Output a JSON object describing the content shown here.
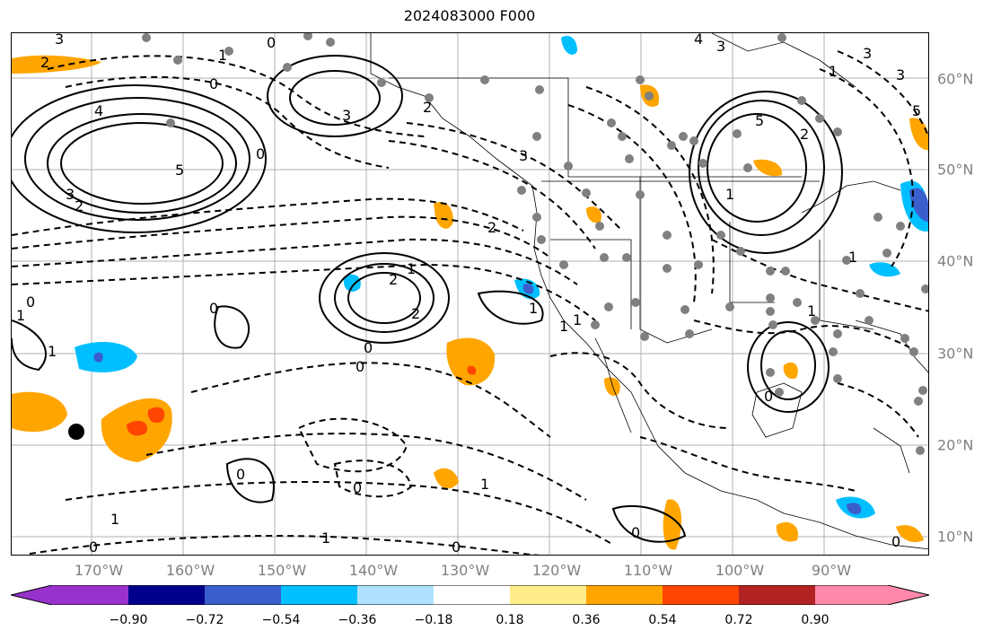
{
  "title": "2024083000 F000",
  "lat_labels": [
    "60°N",
    "50°N",
    "40°N",
    "30°N",
    "20°N",
    "10°N"
  ],
  "lon_labels": [
    "170°W",
    "160°W",
    "150°W",
    "140°W",
    "130°W",
    "120°W",
    "110°W",
    "100°W",
    "90°W"
  ],
  "colorbar": {
    "tick_labels": [
      "−0.90",
      "−0.72",
      "−0.54",
      "−0.36",
      "−0.18",
      "0.18",
      "0.36",
      "0.54",
      "0.72",
      "0.90"
    ],
    "colors": [
      "#9932CC",
      "#00008B",
      "#3A5FCD",
      "#00BFFF",
      "#B0E2FF",
      "#FFFFFF",
      "#FFEC8B",
      "#FFA500",
      "#FF4500",
      "#B22222",
      "#FF88AA"
    ]
  },
  "contour_labels": [
    {
      "text": "3"
    },
    {
      "text": "2"
    },
    {
      "text": "1"
    },
    {
      "text": "0"
    },
    {
      "text": "0"
    },
    {
      "text": "1"
    },
    {
      "text": "0"
    },
    {
      "text": "3"
    },
    {
      "text": "2"
    },
    {
      "text": "4"
    },
    {
      "text": "3"
    },
    {
      "text": "5"
    },
    {
      "text": "5"
    },
    {
      "text": "3"
    },
    {
      "text": "2"
    },
    {
      "text": "1"
    },
    {
      "text": "0"
    },
    {
      "text": "3"
    },
    {
      "text": "2"
    },
    {
      "text": "1"
    },
    {
      "text": "2"
    },
    {
      "text": "2"
    },
    {
      "text": "0"
    },
    {
      "text": "0"
    },
    {
      "text": "1"
    },
    {
      "text": "0"
    },
    {
      "text": "1"
    },
    {
      "text": "1"
    },
    {
      "text": "0"
    },
    {
      "text": "1"
    },
    {
      "text": "0"
    },
    {
      "text": "0"
    },
    {
      "text": "1"
    },
    {
      "text": "1"
    },
    {
      "text": "0"
    },
    {
      "text": "1"
    },
    {
      "text": "0"
    },
    {
      "text": "0"
    },
    {
      "text": "1"
    },
    {
      "text": "4"
    },
    {
      "text": "3"
    },
    {
      "text": "2"
    },
    {
      "text": "1"
    },
    {
      "text": "0"
    },
    {
      "text": "1"
    },
    {
      "text": "3"
    },
    {
      "text": "5"
    }
  ]
}
